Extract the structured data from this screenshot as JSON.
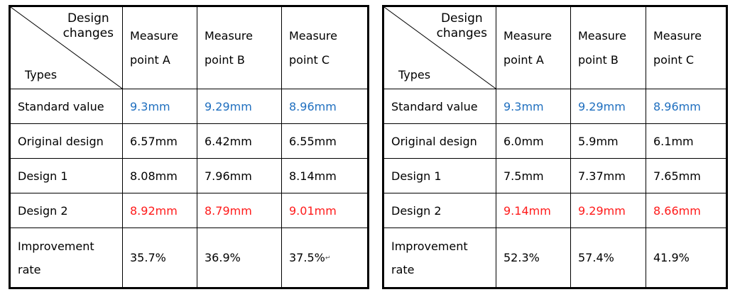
{
  "corner": {
    "top_line1": "Design",
    "top_line2": "changes",
    "bottom": "Types"
  },
  "headers": [
    {
      "line1": "Measure",
      "line2": "point A"
    },
    {
      "line1": "Measure",
      "line2": "point B"
    },
    {
      "line1": "Measure",
      "line2": "point C"
    }
  ],
  "row_labels": {
    "standard": "Standard value",
    "original": "Original design",
    "design1": "Design 1",
    "design2": "Design 2",
    "improvement_line1": "Improvement",
    "improvement_line2": "rate"
  },
  "tables": [
    {
      "standard": [
        "9.3mm",
        "9.29mm",
        "8.96mm"
      ],
      "original": [
        "6.57mm",
        "6.42mm",
        "6.55mm"
      ],
      "design1": [
        "8.08mm",
        "7.96mm",
        "8.14mm"
      ],
      "design2": [
        "8.92mm",
        "8.79mm",
        "9.01mm"
      ],
      "improvement": [
        "35.7%",
        "36.9%",
        "37.5%"
      ],
      "trailing_mark": "↵"
    },
    {
      "standard": [
        "9.3mm",
        "9.29mm",
        "8.96mm"
      ],
      "original": [
        "6.0mm",
        "5.9mm",
        "6.1mm"
      ],
      "design1": [
        "7.5mm",
        "7.37mm",
        "7.65mm"
      ],
      "design2": [
        "9.14mm",
        "9.29mm",
        "8.66mm"
      ],
      "improvement": [
        "52.3%",
        "57.4%",
        "41.9%"
      ]
    }
  ],
  "colors": {
    "standard_values": "#1f6fbf",
    "design2_values": "#ff1a1a"
  }
}
